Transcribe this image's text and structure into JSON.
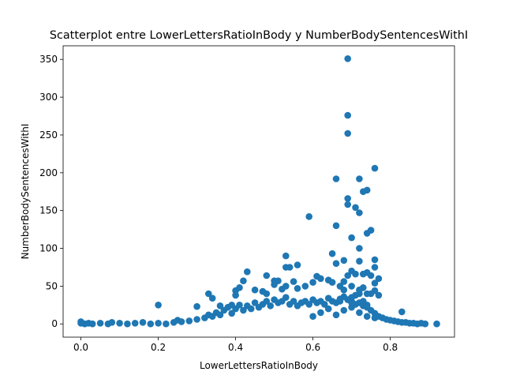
{
  "chart_data": {
    "type": "scatter",
    "title": "Scatterplot entre LowerLettersRatioInBody y NumberBodySentencesWithI",
    "xlabel": "LowerLettersRatioInBody",
    "ylabel": "NumberBodySentencesWithI",
    "xlim": [
      -0.046,
      0.966
    ],
    "ylim": [
      -17.5,
      368
    ],
    "xticks": [
      "0.0",
      "0.2",
      "0.4",
      "0.6",
      "0.8"
    ],
    "yticks": [
      "0",
      "50",
      "100",
      "150",
      "200",
      "250",
      "300",
      "350"
    ],
    "grid": false,
    "marker_color": "#1f77b4",
    "series": [
      {
        "x": [
          0.0,
          0.0,
          0.01,
          0.02,
          0.03,
          0.05,
          0.07,
          0.08,
          0.1,
          0.12,
          0.14,
          0.16,
          0.18,
          0.2,
          0.22,
          0.24,
          0.25,
          0.26,
          0.28,
          0.3,
          0.32,
          0.33,
          0.34,
          0.35,
          0.36,
          0.37,
          0.38,
          0.39,
          0.4,
          0.41,
          0.42,
          0.43,
          0.44,
          0.45,
          0.46,
          0.47,
          0.48,
          0.49,
          0.5,
          0.51,
          0.52,
          0.53,
          0.54,
          0.55,
          0.56,
          0.57,
          0.58,
          0.59,
          0.6,
          0.61,
          0.62,
          0.63,
          0.64,
          0.65,
          0.66,
          0.67,
          0.68,
          0.69,
          0.7,
          0.71,
          0.72,
          0.73,
          0.74,
          0.75,
          0.76,
          0.77,
          0.78,
          0.79,
          0.8,
          0.81,
          0.82,
          0.83,
          0.84,
          0.85,
          0.86,
          0.87,
          0.88,
          0.89,
          0.92,
          0.2,
          0.3,
          0.33,
          0.34,
          0.36,
          0.39,
          0.4,
          0.42,
          0.41,
          0.4,
          0.43,
          0.45,
          0.47,
          0.48,
          0.5,
          0.5,
          0.51,
          0.52,
          0.53,
          0.54,
          0.55,
          0.56,
          0.58,
          0.6,
          0.61,
          0.62,
          0.64,
          0.65,
          0.66,
          0.68,
          0.69,
          0.7,
          0.71,
          0.72,
          0.73,
          0.74,
          0.75,
          0.76,
          0.77,
          0.6,
          0.62,
          0.64,
          0.66,
          0.68,
          0.7,
          0.72,
          0.74,
          0.76,
          0.48,
          0.53,
          0.53,
          0.56,
          0.59,
          0.65,
          0.66,
          0.66,
          0.67,
          0.69,
          0.69,
          0.69,
          0.69,
          0.69,
          0.7,
          0.71,
          0.72,
          0.72,
          0.72,
          0.73,
          0.73,
          0.74,
          0.74,
          0.75,
          0.76,
          0.76,
          0.76,
          0.77,
          0.68,
          0.7,
          0.72,
          0.74,
          0.7,
          0.68,
          0.71,
          0.73,
          0.67,
          0.7,
          0.75,
          0.76,
          0.72,
          0.74,
          0.83
        ],
        "y": [
          1,
          3,
          0,
          1,
          0,
          1,
          0,
          2,
          1,
          0,
          1,
          2,
          0,
          1,
          0,
          2,
          5,
          3,
          4,
          6,
          8,
          12,
          10,
          15,
          12,
          18,
          22,
          14,
          20,
          25,
          18,
          24,
          20,
          28,
          22,
          26,
          30,
          24,
          32,
          28,
          30,
          35,
          26,
          30,
          24,
          28,
          30,
          26,
          32,
          28,
          30,
          26,
          34,
          30,
          28,
          30,
          36,
          32,
          30,
          26,
          28,
          24,
          22,
          18,
          14,
          10,
          8,
          6,
          5,
          4,
          3,
          2,
          2,
          1,
          1,
          0,
          1,
          0,
          0,
          25,
          23,
          40,
          34,
          24,
          25,
          44,
          57,
          48,
          38,
          69,
          45,
          43,
          64,
          57,
          52,
          57,
          46,
          90,
          75,
          56,
          78,
          50,
          55,
          63,
          60,
          58,
          93,
          80,
          84,
          64,
          70,
          66,
          83,
          48,
          68,
          40,
          44,
          38,
          10,
          15,
          20,
          12,
          18,
          22,
          15,
          10,
          8,
          40,
          75,
          50,
          47,
          142,
          55,
          130,
          192,
          50,
          351,
          276,
          252,
          166,
          158,
          114,
          154,
          192,
          147,
          100,
          66,
          175,
          177,
          120,
          124,
          85,
          75,
          206,
          60,
          56,
          50,
          45,
          40,
          35,
          45,
          38,
          30,
          33,
          28,
          64,
          54,
          40,
          25,
          16
        ]
      }
    ]
  }
}
